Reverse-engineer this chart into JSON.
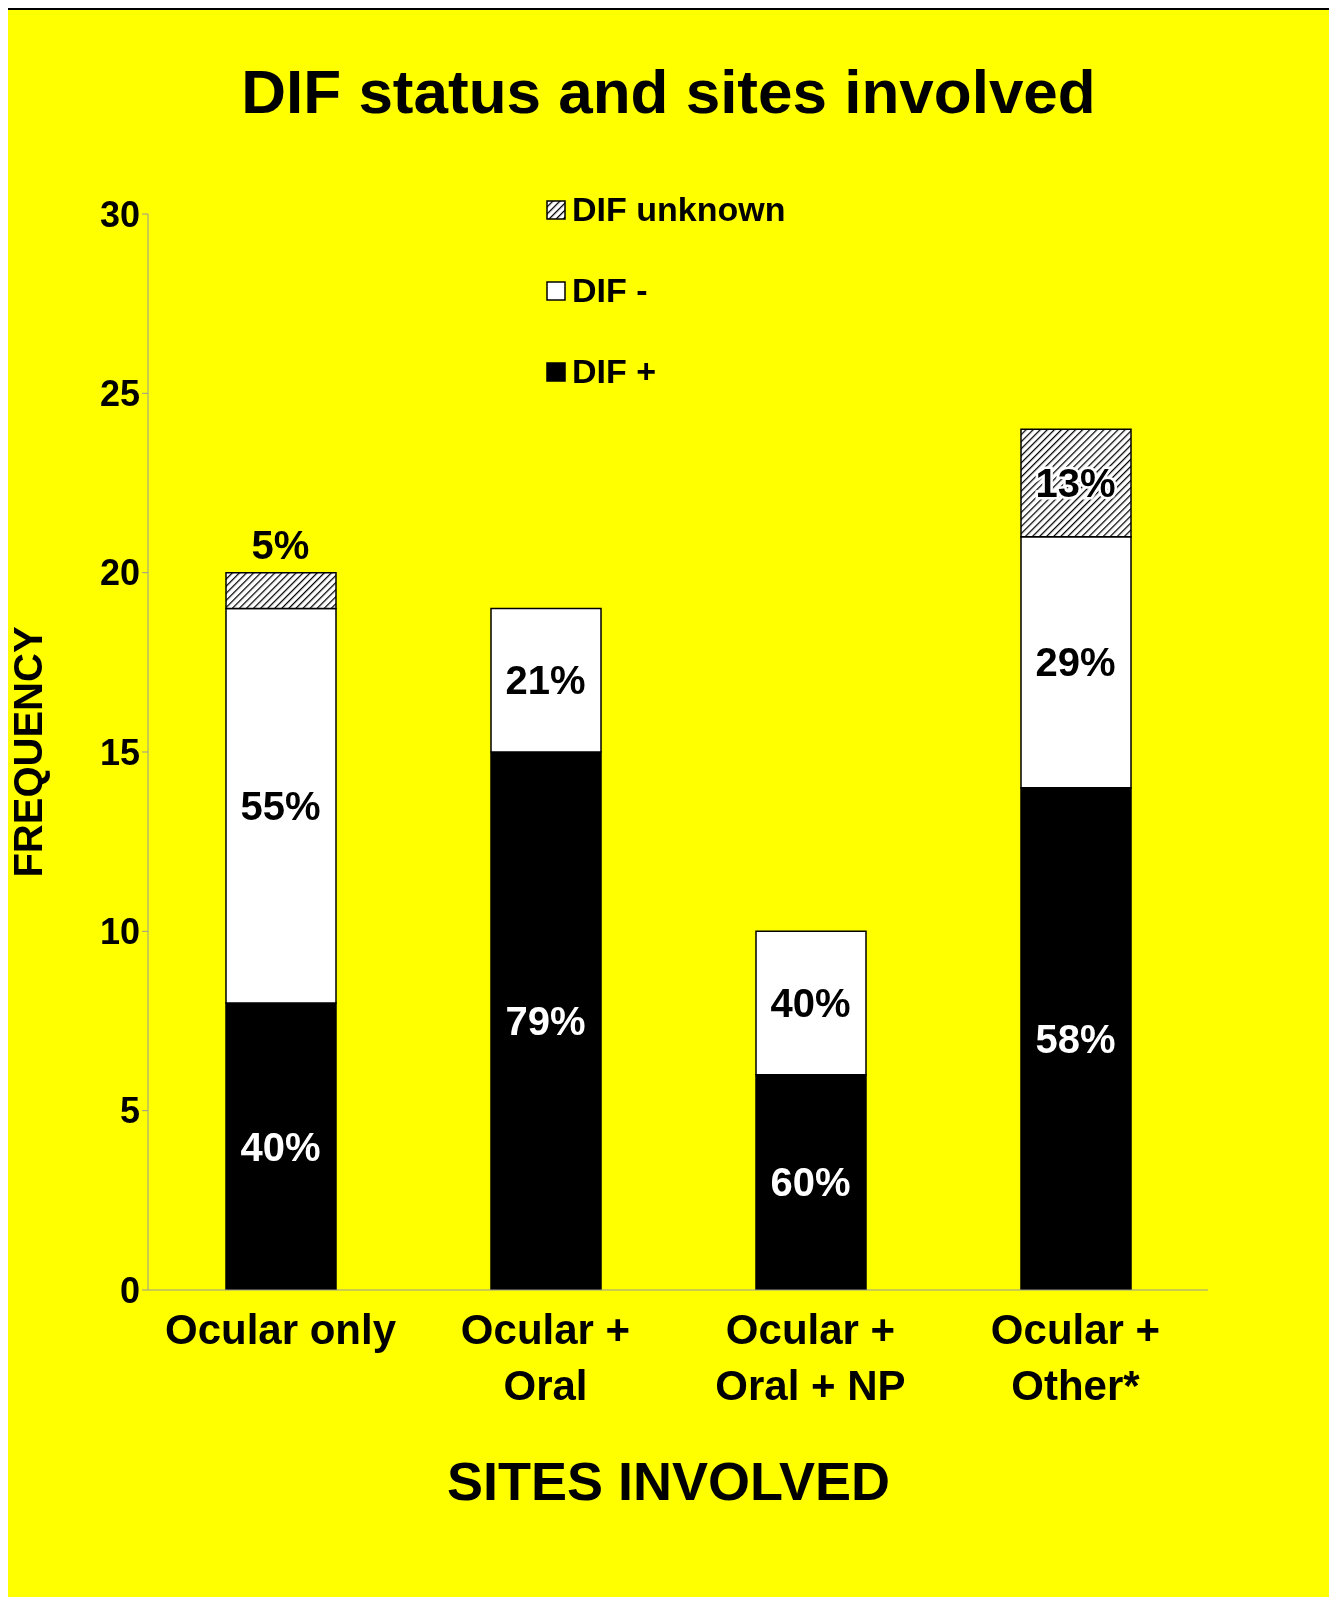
{
  "chart_data": {
    "type": "bar",
    "title": "DIF status and sites involved",
    "xlabel": "SITES INVOLVED",
    "ylabel": "FREQUENCY",
    "categories": [
      "Ocular only",
      "Ocular + Oral",
      "Ocular + Oral + NP",
      "Ocular + Other*"
    ],
    "stacked": true,
    "ylim": [
      0,
      30
    ],
    "yticks": [
      0,
      5,
      10,
      15,
      20,
      25,
      30
    ],
    "grid": false,
    "legend": "top",
    "series": [
      {
        "name": "DIF +",
        "color": "#000000",
        "values": [
          8,
          15,
          6,
          14
        ]
      },
      {
        "name": "DIF -",
        "color": "#ffffff",
        "values": [
          11,
          4,
          4,
          7
        ]
      },
      {
        "name": "DIF unknown",
        "color": "#000000",
        "values": [
          1,
          0,
          0,
          3
        ]
      }
    ],
    "annotations": [
      "40%",
      "55%",
      "5%",
      "79%",
      "21%",
      "60%",
      "40%",
      "58%",
      "29%",
      "13%"
    ]
  }
}
